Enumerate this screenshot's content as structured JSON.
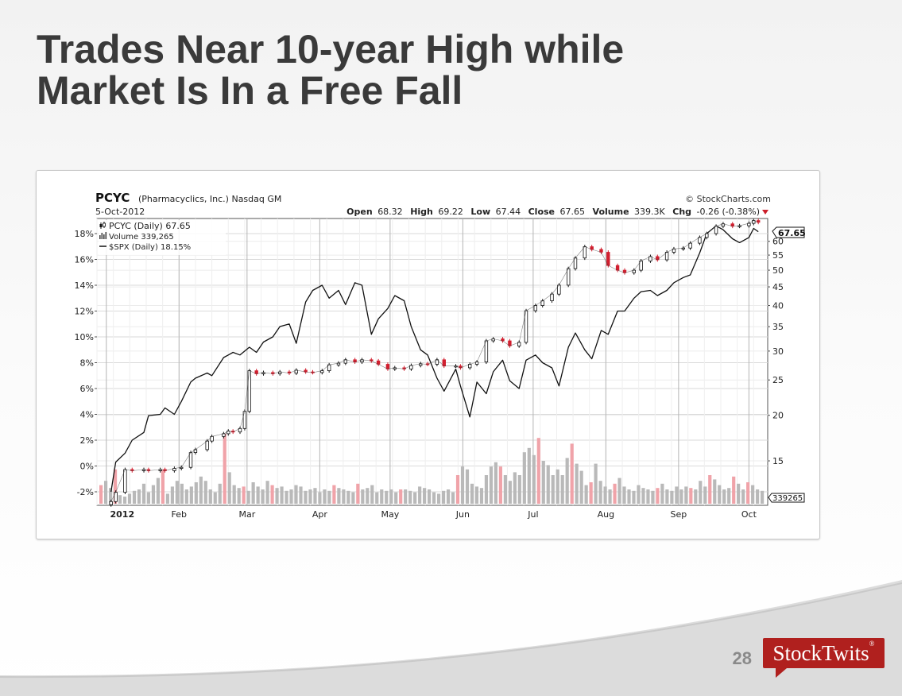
{
  "slide": {
    "title_lines": [
      "Trades Near 10-year High while",
      "Market Is In a Free Fall"
    ],
    "page_number": "28",
    "logo_text": "StockTwits",
    "logo_mark": "®",
    "colors": {
      "title": "#3a3a3a",
      "logo_bg": "#b0201e",
      "page_number": "#8a8a8a"
    }
  },
  "chart_data": {
    "type": "line",
    "symbol": "PCYC",
    "company": "(Pharmacyclics, Inc.) Nasdaq GM",
    "date": "5-Oct-2012",
    "source": "© StockCharts.com",
    "quote": [
      {
        "label": "Open",
        "value": "68.32"
      },
      {
        "label": "High",
        "value": "69.22"
      },
      {
        "label": "Low",
        "value": "67.44"
      },
      {
        "label": "Close",
        "value": "67.65"
      },
      {
        "label": "Volume",
        "value": "339.3K"
      },
      {
        "label": "Chg",
        "value": "-0.26 (-0.38%)"
      }
    ],
    "legend": [
      {
        "icon": "candle",
        "text": "PCYC (Daily) 67.65"
      },
      {
        "icon": "volume",
        "text": "Volume 339,265"
      },
      {
        "icon": "line",
        "text": "$SPX (Daily) 18.15%"
      }
    ],
    "x_labels": [
      "2012",
      "Feb",
      "Mar",
      "Apr",
      "May",
      "Jun",
      "Jul",
      "Aug",
      "Sep",
      "Oct"
    ],
    "x_label_dates": [
      "2012-01-01",
      "2012-02-01",
      "2012-03-01",
      "2012-04-01",
      "2012-05-01",
      "2012-06-01",
      "2012-07-01",
      "2012-08-01",
      "2012-09-01",
      "2012-10-01"
    ],
    "x_range": [
      "2011-12-28",
      "2012-10-09"
    ],
    "left_axis": {
      "ticks": [
        "18%",
        "16%",
        "14%",
        "12%",
        "10%",
        "8%",
        "6%",
        "4%",
        "2%",
        "0%",
        "-2%"
      ],
      "values": [
        18,
        16,
        14,
        12,
        10,
        8,
        6,
        4,
        2,
        0,
        -2
      ]
    },
    "right_axis": {
      "ticks": [
        "60",
        "55",
        "50",
        "45",
        "40",
        "35",
        "30",
        "25",
        "20",
        "15"
      ],
      "values": [
        60,
        55,
        50,
        45,
        40,
        35,
        30,
        25,
        20,
        15
      ],
      "scale": "log",
      "range": [
        11.5,
        70
      ]
    },
    "last_price_label": "67.65",
    "last_volume_label": "339265",
    "pcyc_close": [
      [
        "2012-01-03",
        11.6
      ],
      [
        "2012-01-05",
        12.3
      ],
      [
        "2012-01-09",
        14.2
      ],
      [
        "2012-01-12",
        14.1
      ],
      [
        "2012-01-17",
        14.2
      ],
      [
        "2012-01-19",
        14.1
      ],
      [
        "2012-01-24",
        14.2
      ],
      [
        "2012-01-26",
        14.1
      ],
      [
        "2012-01-30",
        14.3
      ],
      [
        "2012-02-02",
        14.4
      ],
      [
        "2012-02-06",
        15.8
      ],
      [
        "2012-02-08",
        16.1
      ],
      [
        "2012-02-13",
        17.0
      ],
      [
        "2012-02-15",
        17.5
      ],
      [
        "2012-02-20",
        17.8
      ],
      [
        "2012-02-22",
        18.1
      ],
      [
        "2012-02-24",
        18.0
      ],
      [
        "2012-02-27",
        18.4
      ],
      [
        "2012-02-29",
        20.5
      ],
      [
        "2012-03-02",
        26.5
      ],
      [
        "2012-03-05",
        26.0
      ],
      [
        "2012-03-08",
        26.2
      ],
      [
        "2012-03-12",
        26.0
      ],
      [
        "2012-03-15",
        26.3
      ],
      [
        "2012-03-19",
        26.1
      ],
      [
        "2012-03-22",
        26.6
      ],
      [
        "2012-03-26",
        26.3
      ],
      [
        "2012-03-29",
        26.2
      ],
      [
        "2012-04-02",
        26.5
      ],
      [
        "2012-04-05",
        27.5
      ],
      [
        "2012-04-09",
        27.8
      ],
      [
        "2012-04-12",
        28.4
      ],
      [
        "2012-04-16",
        28.0
      ],
      [
        "2012-04-19",
        28.4
      ],
      [
        "2012-04-23",
        28.2
      ],
      [
        "2012-04-26",
        27.6
      ],
      [
        "2012-04-30",
        26.8
      ],
      [
        "2012-05-03",
        27.0
      ],
      [
        "2012-05-07",
        26.8
      ],
      [
        "2012-05-10",
        27.4
      ],
      [
        "2012-05-14",
        27.7
      ],
      [
        "2012-05-17",
        27.6
      ],
      [
        "2012-05-21",
        28.4
      ],
      [
        "2012-05-24",
        27.3
      ],
      [
        "2012-05-29",
        27.3
      ],
      [
        "2012-05-31",
        27.0
      ],
      [
        "2012-06-04",
        27.6
      ],
      [
        "2012-06-07",
        28.0
      ],
      [
        "2012-06-11",
        32.0
      ],
      [
        "2012-06-14",
        32.4
      ],
      [
        "2012-06-18",
        32.0
      ],
      [
        "2012-06-21",
        31.0
      ],
      [
        "2012-06-25",
        31.7
      ],
      [
        "2012-06-28",
        38.7
      ],
      [
        "2012-07-02",
        40.0
      ],
      [
        "2012-07-05",
        41.2
      ],
      [
        "2012-07-09",
        43.0
      ],
      [
        "2012-07-12",
        45.5
      ],
      [
        "2012-07-16",
        50.5
      ],
      [
        "2012-07-19",
        54.0
      ],
      [
        "2012-07-23",
        58.0
      ],
      [
        "2012-07-26",
        57.0
      ],
      [
        "2012-07-30",
        56.0
      ],
      [
        "2012-08-02",
        51.5
      ],
      [
        "2012-08-06",
        50.0
      ],
      [
        "2012-08-09",
        49.2
      ],
      [
        "2012-08-13",
        50.0
      ],
      [
        "2012-08-16",
        53.0
      ],
      [
        "2012-08-20",
        54.5
      ],
      [
        "2012-08-23",
        53.4
      ],
      [
        "2012-08-27",
        56.0
      ],
      [
        "2012-08-30",
        57.2
      ],
      [
        "2012-09-03",
        57.5
      ],
      [
        "2012-09-06",
        59.3
      ],
      [
        "2012-09-10",
        61.5
      ],
      [
        "2012-09-13",
        63.0
      ],
      [
        "2012-09-17",
        66.0
      ],
      [
        "2012-09-20",
        67.0
      ],
      [
        "2012-09-24",
        66.0
      ],
      [
        "2012-09-27",
        66.2
      ],
      [
        "2012-10-01",
        67.2
      ],
      [
        "2012-10-03",
        68.4
      ],
      [
        "2012-10-05",
        67.65
      ]
    ],
    "spx_pct": [
      [
        "2012-01-03",
        -2.0
      ],
      [
        "2012-01-05",
        0.3
      ],
      [
        "2012-01-09",
        1.0
      ],
      [
        "2012-01-12",
        2.0
      ],
      [
        "2012-01-17",
        2.6
      ],
      [
        "2012-01-19",
        3.9
      ],
      [
        "2012-01-24",
        4.0
      ],
      [
        "2012-01-26",
        4.5
      ],
      [
        "2012-01-30",
        4.0
      ],
      [
        "2012-02-02",
        5.0
      ],
      [
        "2012-02-06",
        6.5
      ],
      [
        "2012-02-08",
        6.8
      ],
      [
        "2012-02-13",
        7.2
      ],
      [
        "2012-02-15",
        7.0
      ],
      [
        "2012-02-20",
        8.4
      ],
      [
        "2012-02-22",
        8.6
      ],
      [
        "2012-02-24",
        8.8
      ],
      [
        "2012-02-27",
        8.6
      ],
      [
        "2012-02-29",
        8.9
      ],
      [
        "2012-03-02",
        9.2
      ],
      [
        "2012-03-05",
        8.8
      ],
      [
        "2012-03-08",
        9.6
      ],
      [
        "2012-03-12",
        10.0
      ],
      [
        "2012-03-15",
        10.8
      ],
      [
        "2012-03-19",
        11.0
      ],
      [
        "2012-03-22",
        9.5
      ],
      [
        "2012-03-26",
        12.7
      ],
      [
        "2012-03-29",
        13.6
      ],
      [
        "2012-04-02",
        14.0
      ],
      [
        "2012-04-05",
        13.0
      ],
      [
        "2012-04-09",
        13.6
      ],
      [
        "2012-04-12",
        12.5
      ],
      [
        "2012-04-16",
        14.2
      ],
      [
        "2012-04-19",
        14.0
      ],
      [
        "2012-04-23",
        10.2
      ],
      [
        "2012-04-26",
        11.4
      ],
      [
        "2012-04-30",
        12.2
      ],
      [
        "2012-05-03",
        13.2
      ],
      [
        "2012-05-07",
        12.8
      ],
      [
        "2012-05-10",
        10.8
      ],
      [
        "2012-05-14",
        9.0
      ],
      [
        "2012-05-17",
        8.6
      ],
      [
        "2012-05-21",
        6.8
      ],
      [
        "2012-05-24",
        5.8
      ],
      [
        "2012-05-29",
        7.5
      ],
      [
        "2012-05-31",
        6.2
      ],
      [
        "2012-06-04",
        3.8
      ],
      [
        "2012-06-07",
        6.5
      ],
      [
        "2012-06-11",
        5.6
      ],
      [
        "2012-06-14",
        7.3
      ],
      [
        "2012-06-18",
        8.2
      ],
      [
        "2012-06-21",
        6.6
      ],
      [
        "2012-06-25",
        6.0
      ],
      [
        "2012-06-28",
        8.2
      ],
      [
        "2012-07-02",
        8.6
      ],
      [
        "2012-07-05",
        8.0
      ],
      [
        "2012-07-09",
        7.6
      ],
      [
        "2012-07-12",
        6.2
      ],
      [
        "2012-07-16",
        9.2
      ],
      [
        "2012-07-19",
        10.3
      ],
      [
        "2012-07-23",
        9.0
      ],
      [
        "2012-07-26",
        8.3
      ],
      [
        "2012-07-30",
        10.5
      ],
      [
        "2012-08-02",
        10.2
      ],
      [
        "2012-08-06",
        12.0
      ],
      [
        "2012-08-09",
        12.0
      ],
      [
        "2012-08-13",
        13.0
      ],
      [
        "2012-08-16",
        13.5
      ],
      [
        "2012-08-20",
        13.6
      ],
      [
        "2012-08-23",
        13.2
      ],
      [
        "2012-08-27",
        13.6
      ],
      [
        "2012-08-30",
        14.2
      ],
      [
        "2012-09-03",
        14.6
      ],
      [
        "2012-09-06",
        14.8
      ],
      [
        "2012-09-10",
        16.5
      ],
      [
        "2012-09-13",
        18.0
      ],
      [
        "2012-09-17",
        18.6
      ],
      [
        "2012-09-20",
        18.3
      ],
      [
        "2012-09-24",
        17.6
      ],
      [
        "2012-09-27",
        17.3
      ],
      [
        "2012-10-01",
        17.7
      ],
      [
        "2012-10-03",
        18.4
      ],
      [
        "2012-10-05",
        18.15
      ]
    ],
    "volume_scale_max": 5.0,
    "volume": [
      1.3,
      1.6,
      1.1,
      2.4,
      0.6,
      0.5,
      0.7,
      0.9,
      1.0,
      1.4,
      0.8,
      1.3,
      1.8,
      2.4,
      0.7,
      1.2,
      1.6,
      1.4,
      1.0,
      1.2,
      1.5,
      1.9,
      1.6,
      1.0,
      0.8,
      1.4,
      4.9,
      2.2,
      1.3,
      1.1,
      1.2,
      0.9,
      1.5,
      1.2,
      1.0,
      1.6,
      1.3,
      1.1,
      1.2,
      0.9,
      1.0,
      1.3,
      1.2,
      0.9,
      1.0,
      1.1,
      0.8,
      1.0,
      0.9,
      1.3,
      1.1,
      1.0,
      0.9,
      0.8,
      1.4,
      1.0,
      1.1,
      1.3,
      0.8,
      1.0,
      0.9,
      1.0,
      0.8,
      1.0,
      1.0,
      0.9,
      0.8,
      1.2,
      1.1,
      1.0,
      0.8,
      0.7,
      0.9,
      1.0,
      0.8,
      2.0,
      2.6,
      2.4,
      1.4,
      1.2,
      1.1,
      2.0,
      2.6,
      2.9,
      2.6,
      2.0,
      1.6,
      2.2,
      2.0,
      3.6,
      3.9,
      3.4,
      4.6,
      3.0,
      2.7,
      2.0,
      2.4,
      2.0,
      3.2,
      4.2,
      2.8,
      2.3,
      1.3,
      1.5,
      2.8,
      1.6,
      1.2,
      1.0,
      1.4,
      1.8,
      1.2,
      1.0,
      0.9,
      1.3,
      1.1,
      1.0,
      0.9,
      1.1,
      1.4,
      1.0,
      0.9,
      1.2,
      1.0,
      1.2,
      1.1,
      1.0,
      1.6,
      1.2,
      2.0,
      1.7,
      1.3,
      1.0,
      1.1,
      1.9,
      1.4,
      1.0,
      1.5,
      1.3,
      1.0,
      0.9
    ],
    "volume_down_days": [
      0,
      3,
      13,
      26,
      30,
      36,
      49,
      54,
      63,
      75,
      84,
      92,
      99,
      103,
      108,
      117,
      124,
      128,
      133,
      136
    ]
  }
}
